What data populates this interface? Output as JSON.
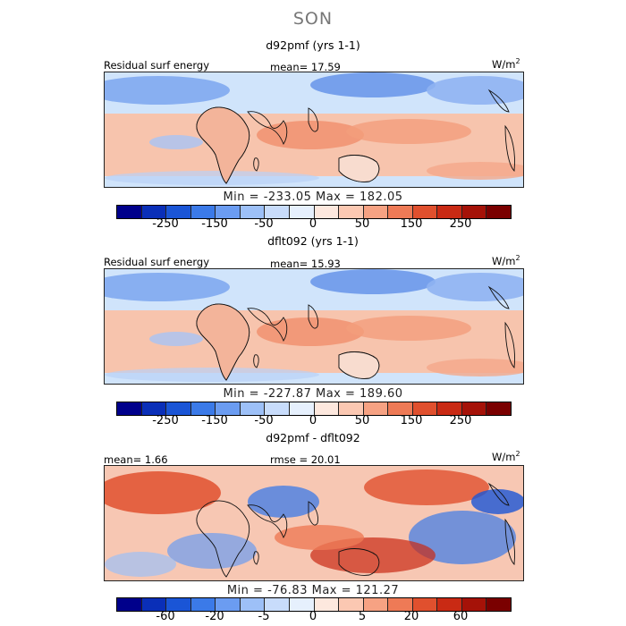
{
  "season": "SON",
  "panels": [
    {
      "title": "d92pmf (yrs 1-1)",
      "left_label": "Residual surf energy",
      "center_label": "mean=  17.59",
      "units": "W/m",
      "units_sup": "2",
      "minmax": "Min = -233.05  Max = 182.05"
    },
    {
      "title": "dflt092 (yrs 1-1)",
      "left_label": "Residual surf energy",
      "center_label": "mean=  15.93",
      "units": "W/m",
      "units_sup": "2",
      "minmax": "Min = -227.87  Max = 189.60"
    },
    {
      "title": "d92pmf - dflt092",
      "left_label": "mean=   1.66",
      "center_label": "rmse =  20.01",
      "units": "W/m",
      "units_sup": "2",
      "minmax": "Min = -76.83  Max = 121.27"
    }
  ],
  "chart_data": [
    {
      "type": "heatmap",
      "title": "d92pmf (yrs 1-1)",
      "field": "Residual surf energy",
      "units": "W/m2",
      "mean": 17.59,
      "min": -233.05,
      "max": 182.05,
      "colorbar_ticks": [
        "-250",
        "-150",
        "-50",
        "0",
        "50",
        "150",
        "250"
      ],
      "colorbar_colors": [
        "#00008b",
        "#0a2fb8",
        "#1a55d6",
        "#3b7ae8",
        "#6b9cf1",
        "#9dc0f7",
        "#c8dcfb",
        "#e6f0fd",
        "#fde8de",
        "#fbc8b2",
        "#f6a283",
        "#ee7a56",
        "#e0502e",
        "#c92a14",
        "#a51208",
        "#7a0000"
      ]
    },
    {
      "type": "heatmap",
      "title": "dflt092 (yrs 1-1)",
      "field": "Residual surf energy",
      "units": "W/m2",
      "mean": 15.93,
      "min": -227.87,
      "max": 189.6,
      "colorbar_ticks": [
        "-250",
        "-150",
        "-50",
        "0",
        "50",
        "150",
        "250"
      ],
      "colorbar_colors": [
        "#00008b",
        "#0a2fb8",
        "#1a55d6",
        "#3b7ae8",
        "#6b9cf1",
        "#9dc0f7",
        "#c8dcfb",
        "#e6f0fd",
        "#fde8de",
        "#fbc8b2",
        "#f6a283",
        "#ee7a56",
        "#e0502e",
        "#c92a14",
        "#a51208",
        "#7a0000"
      ]
    },
    {
      "type": "heatmap",
      "title": "d92pmf - dflt092",
      "units": "W/m2",
      "mean": 1.66,
      "rmse": 20.01,
      "min": -76.83,
      "max": 121.27,
      "colorbar_ticks": [
        "-60",
        "-20",
        "-5",
        "0",
        "5",
        "20",
        "60"
      ],
      "colorbar_colors": [
        "#00008b",
        "#0a2fb8",
        "#1a55d6",
        "#3b7ae8",
        "#6b9cf1",
        "#9dc0f7",
        "#c8dcfb",
        "#e6f0fd",
        "#fde8de",
        "#fbc8b2",
        "#f6a283",
        "#ee7a56",
        "#e0502e",
        "#c92a14",
        "#a51208",
        "#7a0000"
      ]
    }
  ]
}
